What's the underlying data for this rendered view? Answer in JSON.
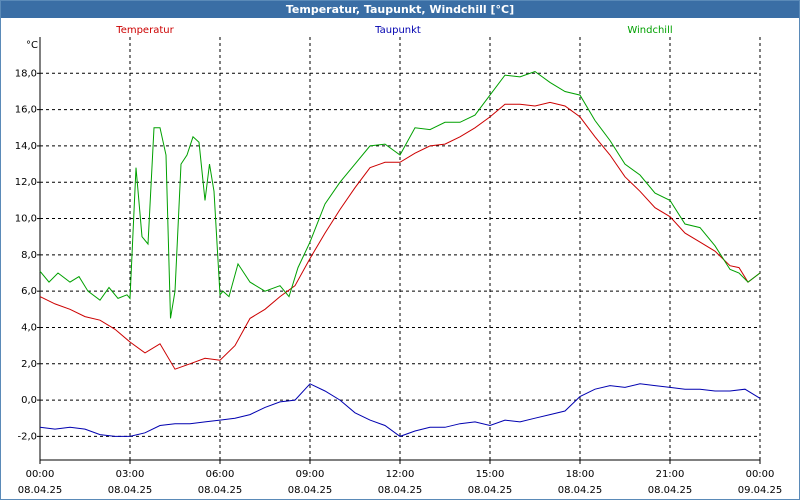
{
  "window_title": "Temperatur, Taupunkt, Windchill [°C]",
  "colors": {
    "titlebar": "#3a6ea5",
    "temperatur": "#cc0000",
    "taupunkt": "#0000b0",
    "windchill": "#00a000"
  },
  "chart_data": {
    "type": "line",
    "title": "Temperatur, Taupunkt, Windchill [°C]",
    "ylabel": "°C",
    "xlabel": "",
    "ylim": [
      -3.3,
      20
    ],
    "xlim": [
      0,
      24
    ],
    "grid": true,
    "yticks": [
      -2,
      0,
      2,
      4,
      6,
      8,
      10,
      12,
      14,
      16,
      18
    ],
    "ytick_labels": [
      "-2,0",
      "0,0",
      "2,0",
      "4,0",
      "6,0",
      "8,0",
      "10,0",
      "12,0",
      "14,0",
      "16,0",
      "18,0"
    ],
    "xticks": [
      0,
      3,
      6,
      9,
      12,
      15,
      18,
      21,
      24
    ],
    "xtick_times": [
      "00:00",
      "03:00",
      "06:00",
      "09:00",
      "12:00",
      "15:00",
      "18:00",
      "21:00",
      "00:00"
    ],
    "xtick_dates": [
      "08.04.25",
      "08.04.25",
      "08.04.25",
      "08.04.25",
      "08.04.25",
      "08.04.25",
      "08.04.25",
      "08.04.25",
      "09.04.25"
    ],
    "legend": [
      "Temperatur",
      "Taupunkt",
      "Windchill"
    ],
    "series": [
      {
        "name": "Temperatur",
        "color": "#cc0000",
        "x": [
          0,
          0.5,
          1,
          1.5,
          2,
          2.5,
          3,
          3.5,
          4,
          4.5,
          5,
          5.5,
          6,
          6.5,
          7,
          7.5,
          8,
          8.5,
          9,
          9.5,
          10,
          10.5,
          11,
          11.5,
          12,
          12.5,
          13,
          13.5,
          14,
          14.5,
          15,
          15.5,
          16,
          16.5,
          17,
          17.5,
          18,
          18.5,
          19,
          19.5,
          20,
          20.5,
          21,
          21.5,
          22,
          22.5,
          23,
          23.3,
          23.6,
          24
        ],
        "values": [
          5.7,
          5.3,
          5.0,
          4.6,
          4.4,
          3.9,
          3.2,
          2.6,
          3.1,
          1.7,
          2.0,
          2.3,
          2.2,
          3.0,
          4.5,
          5.0,
          5.7,
          6.3,
          7.8,
          9.2,
          10.5,
          11.7,
          12.8,
          13.1,
          13.1,
          13.6,
          14.0,
          14.1,
          14.5,
          15.0,
          15.6,
          16.3,
          16.3,
          16.2,
          16.4,
          16.2,
          15.6,
          14.5,
          13.5,
          12.3,
          11.5,
          10.6,
          10.1,
          9.2,
          8.7,
          8.2,
          7.4,
          7.3,
          6.5,
          7.0
        ]
      },
      {
        "name": "Taupunkt",
        "color": "#0000b0",
        "x": [
          0,
          0.5,
          1,
          1.5,
          2,
          2.5,
          3,
          3.5,
          4,
          4.5,
          5,
          5.5,
          6,
          6.5,
          7,
          7.5,
          8,
          8.5,
          9,
          9.5,
          10,
          10.5,
          11,
          11.5,
          12,
          12.5,
          13,
          13.5,
          14,
          14.5,
          15,
          15.5,
          16,
          16.5,
          17,
          17.5,
          18,
          18.5,
          19,
          19.5,
          20,
          20.5,
          21,
          21.5,
          22,
          22.5,
          23,
          23.5,
          24
        ],
        "values": [
          -1.5,
          -1.6,
          -1.5,
          -1.6,
          -1.9,
          -2.0,
          -2.0,
          -1.8,
          -1.4,
          -1.3,
          -1.3,
          -1.2,
          -1.1,
          -1.0,
          -0.8,
          -0.4,
          -0.1,
          0.0,
          0.9,
          0.5,
          0.0,
          -0.7,
          -1.1,
          -1.4,
          -2.0,
          -1.7,
          -1.5,
          -1.5,
          -1.3,
          -1.2,
          -1.4,
          -1.1,
          -1.2,
          -1.0,
          -0.8,
          -0.6,
          0.2,
          0.6,
          0.8,
          0.7,
          0.9,
          0.8,
          0.7,
          0.6,
          0.6,
          0.5,
          0.5,
          0.6,
          0.1
        ]
      },
      {
        "name": "Windchill",
        "color": "#00a000",
        "x": [
          0,
          0.3,
          0.6,
          1,
          1.3,
          1.6,
          2,
          2.3,
          2.6,
          2.9,
          3.0,
          3.2,
          3.4,
          3.6,
          3.8,
          4.0,
          4.2,
          4.35,
          4.5,
          4.7,
          4.9,
          5.1,
          5.3,
          5.5,
          5.65,
          5.8,
          6.0,
          6.1,
          6.3,
          6.6,
          7.0,
          7.5,
          8.0,
          8.3,
          8.6,
          9.0,
          9.5,
          10,
          10.5,
          11,
          11.5,
          12,
          12.5,
          13,
          13.5,
          14,
          14.5,
          15,
          15.5,
          16,
          16.5,
          17,
          17.5,
          18,
          18.5,
          19,
          19.5,
          20,
          20.5,
          21,
          21.5,
          22,
          22.5,
          23,
          23.3,
          23.6,
          24
        ],
        "values": [
          7.1,
          6.5,
          7.0,
          6.5,
          6.8,
          6.0,
          5.5,
          6.2,
          5.6,
          5.8,
          5.6,
          12.8,
          9.0,
          8.6,
          15.0,
          15.0,
          13.5,
          4.5,
          6.0,
          13.0,
          13.5,
          14.5,
          14.2,
          11.0,
          13.0,
          11.5,
          5.8,
          6.0,
          5.7,
          7.5,
          6.5,
          6.0,
          6.3,
          5.7,
          7.3,
          8.7,
          10.8,
          12.0,
          13.0,
          14.0,
          14.1,
          13.5,
          15.0,
          14.9,
          15.3,
          15.3,
          15.7,
          16.8,
          17.9,
          17.8,
          18.1,
          17.5,
          17.0,
          16.8,
          15.4,
          14.3,
          13.0,
          12.4,
          11.4,
          11.0,
          9.7,
          9.5,
          8.5,
          7.2,
          7.0,
          6.5,
          7.0
        ]
      }
    ]
  }
}
